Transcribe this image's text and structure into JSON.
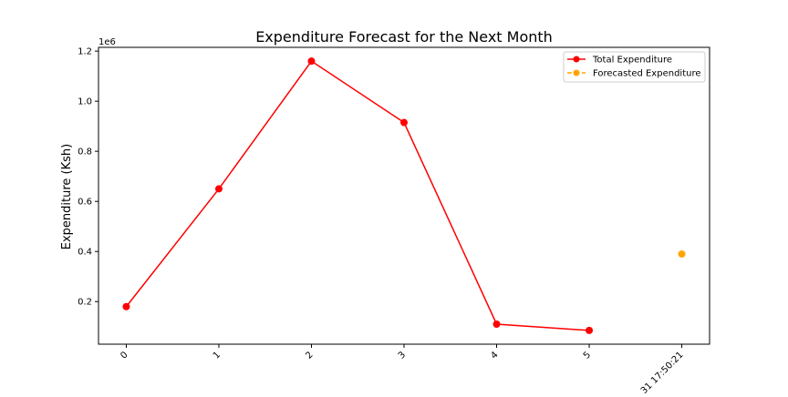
{
  "chart_data": {
    "type": "line",
    "title": "Expenditure Forecast for the Next Month",
    "xlabel": "",
    "ylabel": "Expenditure (Ksh)",
    "y_offset_label": "1e6",
    "x_tick_labels": [
      "0",
      "1",
      "2",
      "3",
      "4",
      "5",
      "31 17:50:21"
    ],
    "y_ticks": [
      0.2,
      0.4,
      0.6,
      0.8,
      1.0,
      1.2
    ],
    "y_tick_labels": [
      "0.2",
      "0.4",
      "0.6",
      "0.8",
      "1.0",
      "1.2"
    ],
    "ylim": [
      30000,
      1215000
    ],
    "xlim": [
      -0.3,
      6.3
    ],
    "grid": false,
    "legend_position": "top-right",
    "series": [
      {
        "name": "Total Expenditure",
        "color": "#ff0000",
        "line_style": "solid",
        "marker": "circle",
        "x": [
          0,
          1,
          2,
          3,
          4,
          5
        ],
        "values": [
          180000,
          650000,
          1160000,
          915000,
          110000,
          85000
        ]
      },
      {
        "name": "Forecasted Expenditure",
        "color": "#ffa500",
        "line_style": "dashed",
        "marker": "circle",
        "x": [
          6
        ],
        "values": [
          390000
        ]
      }
    ]
  }
}
